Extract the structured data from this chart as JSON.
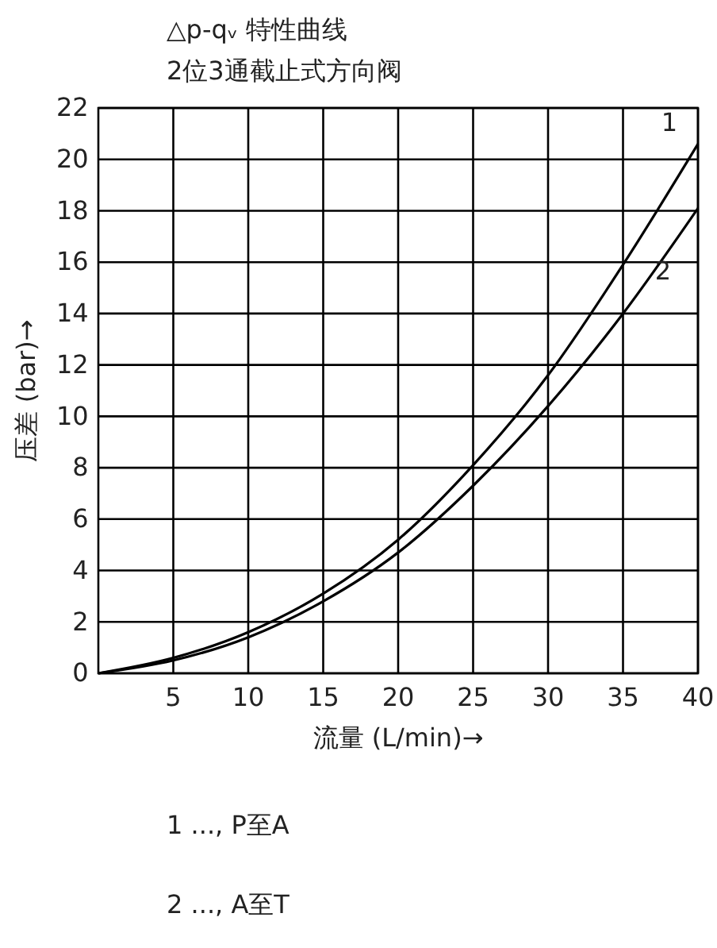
{
  "chart_data": {
    "type": "line",
    "title": "△p-qᵥ 特性曲线",
    "subtitle": "2位3通截止式方向阀",
    "xlabel": "流量 (L/min)→",
    "ylabel": "压差 (bar)→",
    "x": [
      0,
      5,
      10,
      15,
      20,
      25,
      30,
      35,
      40
    ],
    "series": [
      {
        "name": "1",
        "color": "#000000",
        "values": [
          0,
          0.6,
          1.6,
          3.1,
          5.2,
          8.1,
          11.6,
          15.9,
          20.6
        ]
      },
      {
        "name": "2",
        "color": "#000000",
        "values": [
          0,
          0.5,
          1.4,
          2.8,
          4.7,
          7.3,
          10.4,
          14.0,
          18.1
        ]
      }
    ],
    "xlim": [
      0,
      40
    ],
    "xticks": [
      5,
      10,
      15,
      20,
      25,
      30,
      35,
      40
    ],
    "ylim": [
      0,
      22
    ],
    "yticks": [
      0,
      2,
      4,
      6,
      8,
      10,
      12,
      14,
      16,
      18,
      20,
      22
    ],
    "grid": true,
    "marker": "none",
    "line_style": "solid",
    "annotations": [
      "1 ..., P至A",
      "2 ..., A至T"
    ]
  }
}
